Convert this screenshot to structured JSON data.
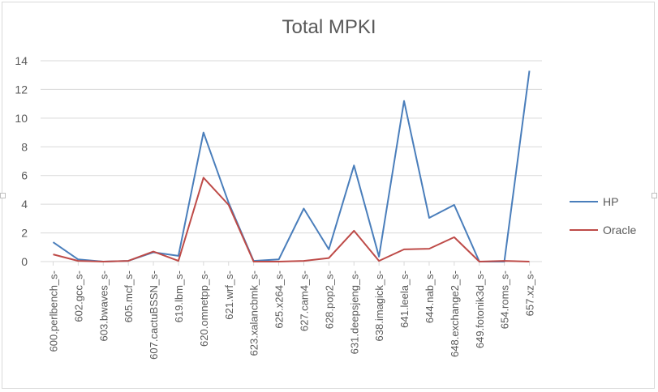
{
  "chart_data": {
    "type": "line",
    "title": "Total MPKI",
    "xlabel": "",
    "ylabel": "",
    "ylim": [
      0,
      14
    ],
    "yticks": [
      0,
      2,
      4,
      6,
      8,
      10,
      12,
      14
    ],
    "grid": true,
    "legend_position": "right",
    "categories": [
      "600.perlbench_s-",
      "602.gcc_s-",
      "603.bwaves_s-",
      "605.mcf_s-",
      "607.cactuBSSN_s-",
      "619.lbm_s-",
      "620.omnetpp_s-",
      "621.wrf_s-",
      "623.xalancbmk_s-",
      "625.x264_s-",
      "627.cam4_s-",
      "628.pop2_s-",
      "631.deepsjeng_s-",
      "638.imagick_s-",
      "641.leela_s-",
      "644.nab_s-",
      "648.exchange2_s-",
      "649.fotonik3d_s-",
      "654.roms_s-",
      "657.xz_s-"
    ],
    "series": [
      {
        "name": "HP",
        "color": "#4a7ebb",
        "values": [
          1.35,
          0.15,
          0.0,
          0.05,
          0.65,
          0.4,
          9.0,
          4.1,
          0.05,
          0.15,
          3.7,
          0.85,
          6.7,
          0.35,
          11.2,
          3.05,
          3.95,
          0.0,
          0.0,
          13.3
        ]
      },
      {
        "name": "Oracle",
        "color": "#be4b48",
        "values": [
          0.5,
          0.05,
          0.0,
          0.05,
          0.7,
          0.05,
          5.85,
          3.95,
          0.0,
          0.0,
          0.05,
          0.25,
          2.15,
          0.05,
          0.85,
          0.9,
          1.7,
          0.0,
          0.05,
          0.0
        ]
      }
    ]
  }
}
